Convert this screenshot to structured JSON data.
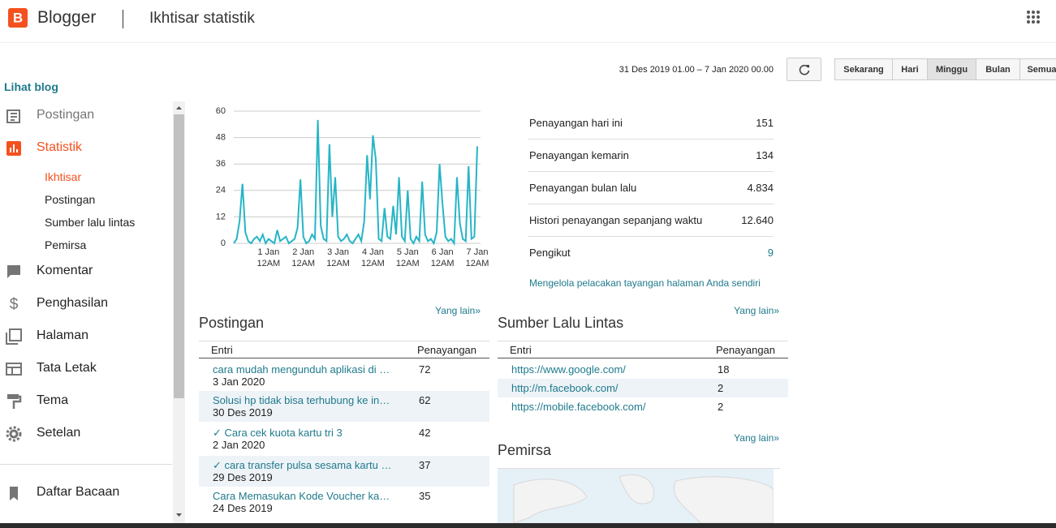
{
  "header": {
    "logo": "Blogger",
    "title": "Ikhtisar statistik"
  },
  "sidebar": {
    "view_blog": "Lihat blog",
    "menu_top": [
      "Postingan",
      "Statistik"
    ],
    "submenu": [
      "Ikhtisar",
      "Postingan",
      "Sumber lalu lintas",
      "Pemirsa"
    ],
    "menu_bottom": [
      "Komentar",
      "Penghasilan",
      "Halaman",
      "Tata Letak",
      "Tema",
      "Setelan"
    ],
    "menu_extra": [
      "Daftar Bacaan"
    ]
  },
  "toolbar": {
    "date_range": "31 Des 2019 01.00 – 7 Jan 2020 00.00",
    "buttons": [
      "Sekarang",
      "Hari",
      "Minggu",
      "Bulan",
      "Semua"
    ],
    "active": "Minggu"
  },
  "chart_data": {
    "type": "line",
    "color": "#26b5c6",
    "grid": true,
    "ylim": [
      0,
      60
    ],
    "yticks": [
      0,
      12,
      24,
      36,
      48,
      60
    ],
    "categories": [
      null,
      null,
      null,
      null,
      null,
      null,
      null,
      null,
      null,
      null,
      null,
      null,
      "1 Jan 12AM",
      null,
      null,
      null,
      null,
      null,
      null,
      null,
      null,
      null,
      null,
      null,
      "2 Jan 12AM",
      null,
      null,
      null,
      null,
      null,
      null,
      null,
      null,
      null,
      null,
      null,
      "3 Jan 12AM",
      null,
      null,
      null,
      null,
      null,
      null,
      null,
      null,
      null,
      null,
      null,
      "4 Jan 12AM",
      null,
      null,
      null,
      null,
      null,
      null,
      null,
      null,
      null,
      null,
      null,
      "5 Jan 12AM",
      null,
      null,
      null,
      null,
      null,
      null,
      null,
      null,
      null,
      null,
      null,
      "6 Jan 12AM",
      null,
      null,
      null,
      null,
      null,
      null,
      null,
      null,
      null,
      null,
      null,
      "7 Jan 12AM"
    ],
    "values": [
      0,
      2,
      10,
      27,
      5,
      1,
      0,
      2,
      3,
      1,
      4,
      0,
      2,
      1,
      0,
      6,
      1,
      2,
      3,
      0,
      1,
      2,
      7,
      29,
      3,
      0,
      1,
      4,
      2,
      56,
      8,
      2,
      1,
      45,
      12,
      30,
      3,
      1,
      2,
      4,
      1,
      0,
      2,
      4,
      1,
      10,
      40,
      20,
      49,
      38,
      2,
      1,
      16,
      3,
      2,
      17,
      4,
      30,
      3,
      1,
      24,
      2,
      0,
      3,
      1,
      28,
      4,
      1,
      2,
      0,
      5,
      36,
      18,
      3,
      1,
      2,
      0,
      30,
      9,
      2,
      1,
      35,
      2,
      3,
      44
    ]
  },
  "stats": {
    "rows": [
      [
        "Penayangan hari ini",
        "151"
      ],
      [
        "Penayangan kemarin",
        "134"
      ],
      [
        "Penayangan bulan lalu",
        "4.834"
      ],
      [
        "Histori penayangan sepanjang waktu",
        "12.640"
      ],
      [
        "Pengikut",
        "9"
      ]
    ],
    "manage_link": "Mengelola pelacakan tayangan halaman Anda sendiri"
  },
  "posts": {
    "more": "Yang lain»",
    "title": "Postingan",
    "columns": [
      "Entri",
      "Penayangan"
    ],
    "rows": [
      [
        "cara mudah mengunduh aplikasi di …",
        "3 Jan 2020",
        "72"
      ],
      [
        "Solusi hp tidak bisa terhubung ke in…",
        "30 Des 2019",
        "62"
      ],
      [
        "✓ Cara cek kuota kartu tri 3",
        "2 Jan 2020",
        "42"
      ],
      [
        "✓ cara transfer pulsa sesama kartu …",
        "29 Des 2019",
        "37"
      ],
      [
        "Cara Memasukan Kode Voucher ka…",
        "24 Des 2019",
        "35"
      ]
    ]
  },
  "traffic": {
    "more": "Yang lain»",
    "title": "Sumber Lalu Lintas",
    "columns": [
      "Entri",
      "Penayangan"
    ],
    "rows": [
      [
        "https://www.google.com/",
        "18"
      ],
      [
        "http://m.facebook.com/",
        "2"
      ],
      [
        "https://mobile.facebook.com/",
        "2"
      ]
    ]
  },
  "audience": {
    "more": "Yang lain»",
    "title": "Pemirsa"
  }
}
